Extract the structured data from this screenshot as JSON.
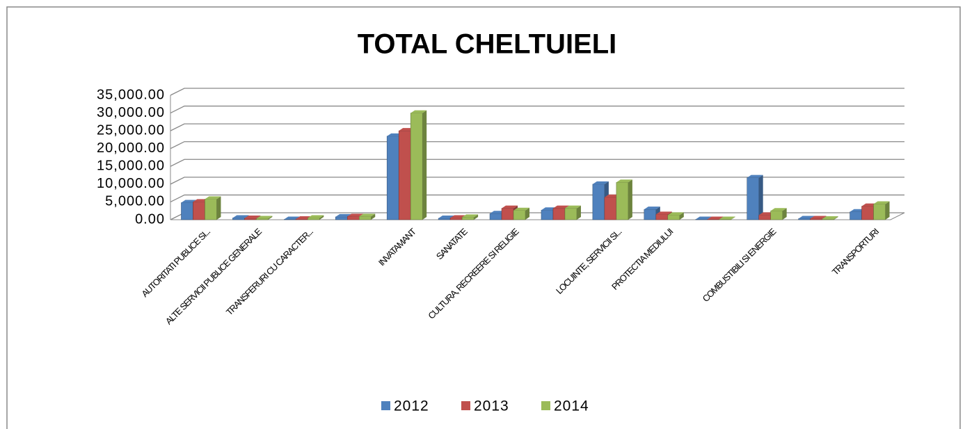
{
  "chart_data": {
    "type": "bar",
    "title": "TOTAL CHELTUIELI",
    "categories": [
      "AUTORITATI PUBLICE SI...",
      "ALTE SERVICII PUBLICE GENERALE",
      "TRANSFERURI CU CARACTER...",
      null,
      "INVATAMANT",
      "SANATATE",
      "CULTURA, RECREERE SI RELIGIE",
      null,
      "LOCUINTE, SERVICII SI...",
      "PROTECTIA MEDIULUI",
      null,
      "COMBUSTIBILI SI ENERGIE",
      null,
      "TRANSPORTURI"
    ],
    "series": [
      {
        "name": "2012",
        "color": "#4f81bd",
        "values": [
          4800,
          500,
          100,
          800,
          23500,
          400,
          1700,
          2700,
          10000,
          2900,
          100,
          11800,
          300,
          2200
        ]
      },
      {
        "name": "2013",
        "color": "#c0504d",
        "values": [
          5000,
          400,
          200,
          900,
          25000,
          500,
          3200,
          3200,
          6300,
          1500,
          100,
          1300,
          300,
          3800
        ]
      },
      {
        "name": "2014",
        "color": "#9bbb59",
        "values": [
          5800,
          300,
          500,
          900,
          30000,
          700,
          2600,
          3200,
          10500,
          1300,
          100,
          2500,
          200,
          4400
        ]
      }
    ],
    "ylim": [
      0,
      35000
    ],
    "yticks": [
      {
        "value": 0,
        "label": "0.00"
      },
      {
        "value": 5000,
        "label": "5,000.00"
      },
      {
        "value": 10000,
        "label": "10,000.00"
      },
      {
        "value": 15000,
        "label": "15,000.00"
      },
      {
        "value": 20000,
        "label": "20,000.00"
      },
      {
        "value": 25000,
        "label": "25,000.00"
      },
      {
        "value": 30000,
        "label": "30,000.00"
      },
      {
        "value": 35000,
        "label": "35,000.00"
      }
    ],
    "grid": true,
    "legend": "bottom"
  }
}
